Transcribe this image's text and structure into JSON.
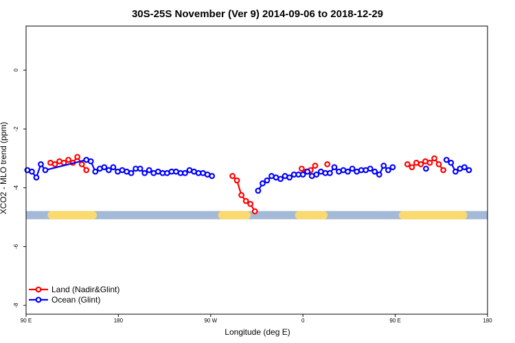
{
  "chart_data": {
    "type": "line",
    "title": "30S-25S November (Ver 9)   2014-09-06 to 2018-12-29",
    "xlabel": "Longitude (deg E)",
    "ylabel": "XCO2 - MLO trend (ppm)",
    "xlim": [
      90,
      450
    ],
    "ylim": [
      -8.3,
      1.5
    ],
    "x_ticks": [
      {
        "value": 90,
        "label": "90 E"
      },
      {
        "value": 162,
        "label": "180"
      },
      {
        "value": 234,
        "label": "90 W"
      },
      {
        "value": 306,
        "label": "0"
      },
      {
        "value": 378,
        "label": "90 E"
      },
      {
        "value": 450,
        "label": "180"
      }
    ],
    "y_ticks": [
      {
        "value": 0,
        "label": "0"
      },
      {
        "value": -2,
        "label": "-2"
      },
      {
        "value": -4,
        "label": "-4"
      },
      {
        "value": -6,
        "label": "-6"
      },
      {
        "value": -8,
        "label": "-8"
      }
    ],
    "land_band": {
      "y": -4.93,
      "color_ocean": "#a3b9d6",
      "color_land": "#fad96f",
      "land_segments": [
        [
          110,
          142
        ],
        [
          243,
          262
        ],
        [
          303,
          318
        ],
        [
          321,
          322
        ],
        [
          384,
          431
        ]
      ]
    },
    "series": [
      {
        "name": "Land (Nadir&Glint)",
        "color": "#ff0000",
        "segments": [
          [
            [
              109,
              -3.15
            ],
            [
              112.5,
              -3.2
            ],
            [
              116,
              -3.1
            ],
            [
              119.5,
              -3.15
            ],
            [
              123,
              -3.05
            ],
            [
              126.5,
              -3.15
            ],
            [
              130,
              -2.95
            ],
            [
              133.5,
              -3.2
            ],
            [
              137,
              -3.4
            ]
          ],
          [
            [
              251,
              -3.6
            ],
            [
              254.5,
              -3.75
            ],
            [
              258,
              -4.25
            ],
            [
              261.5,
              -4.45
            ],
            [
              265,
              -4.55
            ],
            [
              268.5,
              -4.8
            ]
          ],
          [
            [
              305,
              -3.35
            ],
            [
              308.5,
              -3.45
            ],
            [
              312,
              -3.4
            ],
            [
              315.5,
              -3.25
            ]
          ],
          [
            [
              325,
              -3.2
            ]
          ],
          [
            [
              387.5,
              -3.2
            ],
            [
              391,
              -3.3
            ],
            [
              394.5,
              -3.15
            ],
            [
              398,
              -3.2
            ],
            [
              401.5,
              -3.1
            ],
            [
              405,
              -3.15
            ],
            [
              408.5,
              -3.0
            ],
            [
              412,
              -3.2
            ],
            [
              415.5,
              -3.4
            ]
          ]
        ]
      },
      {
        "name": "Ocean (Glint)",
        "color": "#0000ff",
        "segments": [
          [
            [
              91,
              -3.4
            ],
            [
              94.5,
              -3.45
            ],
            [
              98,
              -3.65
            ],
            [
              101.5,
              -3.2
            ],
            [
              105,
              -3.4
            ],
            [
              137,
              -3.05
            ],
            [
              140.5,
              -3.1
            ],
            [
              144,
              -3.45
            ],
            [
              147.5,
              -3.35
            ],
            [
              151,
              -3.3
            ],
            [
              154.5,
              -3.4
            ],
            [
              158,
              -3.3
            ],
            [
              161.5,
              -3.45
            ],
            [
              165,
              -3.4
            ],
            [
              168.5,
              -3.45
            ],
            [
              172,
              -3.5
            ],
            [
              175.5,
              -3.35
            ],
            [
              179,
              -3.35
            ],
            [
              182.5,
              -3.5
            ],
            [
              186,
              -3.4
            ],
            [
              189.5,
              -3.5
            ],
            [
              193,
              -3.45
            ],
            [
              196.5,
              -3.5
            ],
            [
              200,
              -3.5
            ],
            [
              203.5,
              -3.45
            ],
            [
              207,
              -3.45
            ],
            [
              210.5,
              -3.5
            ],
            [
              214,
              -3.5
            ],
            [
              217.5,
              -3.4
            ],
            [
              221,
              -3.45
            ],
            [
              224.5,
              -3.5
            ],
            [
              228,
              -3.5
            ],
            [
              231.5,
              -3.55
            ],
            [
              235,
              -3.6
            ]
          ],
          [
            [
              271,
              -4.1
            ],
            [
              274.5,
              -3.85
            ],
            [
              278,
              -3.75
            ],
            [
              281.5,
              -3.6
            ],
            [
              285,
              -3.65
            ],
            [
              288.5,
              -3.7
            ],
            [
              292,
              -3.6
            ],
            [
              295.5,
              -3.65
            ],
            [
              299,
              -3.55
            ],
            [
              302.5,
              -3.55
            ],
            [
              306,
              -3.55
            ],
            [
              309.5,
              -3.45
            ],
            [
              313,
              -3.6
            ],
            [
              316.5,
              -3.55
            ],
            [
              320,
              -3.45
            ],
            [
              323.5,
              -3.5
            ],
            [
              327,
              -3.5
            ],
            [
              330.5,
              -3.3
            ],
            [
              334,
              -3.45
            ],
            [
              337.5,
              -3.4
            ],
            [
              341,
              -3.45
            ],
            [
              344.5,
              -3.35
            ],
            [
              348,
              -3.45
            ],
            [
              351.5,
              -3.4
            ],
            [
              355,
              -3.4
            ],
            [
              358.5,
              -3.35
            ],
            [
              362,
              -3.45
            ],
            [
              365.5,
              -3.55
            ],
            [
              369,
              -3.25
            ],
            [
              372.5,
              -3.4
            ],
            [
              376,
              -3.3
            ]
          ],
          [
            [
              402,
              -3.35
            ]
          ],
          [
            [
              418,
              -3.05
            ],
            [
              421.5,
              -3.15
            ],
            [
              425,
              -3.45
            ],
            [
              428.5,
              -3.35
            ],
            [
              432,
              -3.3
            ],
            [
              435.5,
              -3.4
            ]
          ]
        ]
      }
    ],
    "legend": {
      "position": "bottom-left",
      "entries": [
        "Land (Nadir&Glint)",
        "Ocean (Glint)"
      ]
    }
  }
}
